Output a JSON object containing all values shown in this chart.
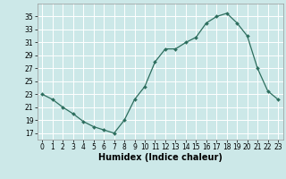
{
  "x": [
    0,
    1,
    2,
    3,
    4,
    5,
    6,
    7,
    8,
    9,
    10,
    11,
    12,
    13,
    14,
    15,
    16,
    17,
    18,
    19,
    20,
    21,
    22,
    23
  ],
  "y": [
    23,
    22.2,
    21,
    20,
    18.8,
    18,
    17.5,
    17,
    19,
    22.2,
    24.2,
    28,
    30,
    30,
    31,
    31.8,
    34,
    35,
    35.5,
    34,
    32,
    27,
    23.5,
    22.2
  ],
  "line_color": "#2d6e5e",
  "marker_color": "#2d6e5e",
  "bg_color": "#cce8e8",
  "grid_color": "#ffffff",
  "grid_minor_color": "#e0f0f0",
  "xlabel": "Humidex (Indice chaleur)",
  "ylim": [
    16,
    37
  ],
  "xlim": [
    -0.5,
    23.5
  ],
  "yticks": [
    17,
    19,
    21,
    23,
    25,
    27,
    29,
    31,
    33,
    35
  ],
  "xtick_labels": [
    "0",
    "1",
    "2",
    "3",
    "4",
    "5",
    "6",
    "7",
    "8",
    "9",
    "10",
    "11",
    "12",
    "13",
    "14",
    "15",
    "16",
    "17",
    "18",
    "19",
    "20",
    "21",
    "22",
    "23"
  ],
  "axis_fontsize": 6.5,
  "tick_fontsize": 5.5,
  "xlabel_fontsize": 7.0
}
